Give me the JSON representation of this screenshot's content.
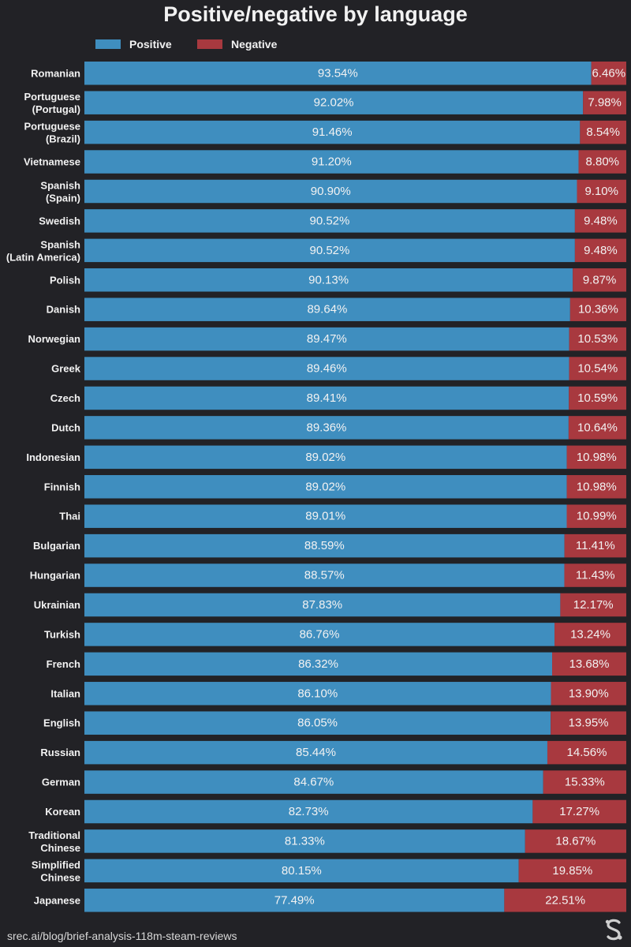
{
  "chart_data": {
    "type": "bar",
    "orientation": "horizontal",
    "stacked": true,
    "title": "Positive/negative by language",
    "categories": [
      [
        "Romanian"
      ],
      [
        "Portuguese",
        "(Portugal)"
      ],
      [
        "Portuguese",
        "(Brazil)"
      ],
      [
        "Vietnamese"
      ],
      [
        "Spanish",
        "(Spain)"
      ],
      [
        "Swedish"
      ],
      [
        "Spanish",
        "(Latin America)"
      ],
      [
        "Polish"
      ],
      [
        "Danish"
      ],
      [
        "Norwegian"
      ],
      [
        "Greek"
      ],
      [
        "Czech"
      ],
      [
        "Dutch"
      ],
      [
        "Indonesian"
      ],
      [
        "Finnish"
      ],
      [
        "Thai"
      ],
      [
        "Bulgarian"
      ],
      [
        "Hungarian"
      ],
      [
        "Ukrainian"
      ],
      [
        "Turkish"
      ],
      [
        "French"
      ],
      [
        "Italian"
      ],
      [
        "English"
      ],
      [
        "Russian"
      ],
      [
        "German"
      ],
      [
        "Korean"
      ],
      [
        "Traditional",
        "Chinese"
      ],
      [
        "Simplified",
        "Chinese"
      ],
      [
        "Japanese"
      ]
    ],
    "series": [
      {
        "name": "Positive",
        "color": "#3f8ebf",
        "values": [
          93.54,
          92.02,
          91.46,
          91.2,
          90.9,
          90.52,
          90.52,
          90.13,
          89.64,
          89.47,
          89.46,
          89.41,
          89.36,
          89.02,
          89.02,
          89.01,
          88.59,
          88.57,
          87.83,
          86.76,
          86.32,
          86.1,
          86.05,
          85.44,
          84.67,
          82.73,
          81.33,
          80.15,
          77.49
        ],
        "labels": [
          "93.54%",
          "92.02%",
          "91.46%",
          "91.20%",
          "90.90%",
          "90.52%",
          "90.52%",
          "90.13%",
          "89.64%",
          "89.47%",
          "89.46%",
          "89.41%",
          "89.36%",
          "89.02%",
          "89.02%",
          "89.01%",
          "88.59%",
          "88.57%",
          "87.83%",
          "86.76%",
          "86.32%",
          "86.10%",
          "86.05%",
          "85.44%",
          "84.67%",
          "82.73%",
          "81.33%",
          "80.15%",
          "77.49%"
        ]
      },
      {
        "name": "Negative",
        "color": "#a8393f",
        "values": [
          6.46,
          7.98,
          8.54,
          8.8,
          9.1,
          9.48,
          9.48,
          9.87,
          10.36,
          10.53,
          10.54,
          10.59,
          10.64,
          10.98,
          10.98,
          10.99,
          11.41,
          11.43,
          12.17,
          13.24,
          13.68,
          13.9,
          13.95,
          14.56,
          15.33,
          17.27,
          18.67,
          19.85,
          22.51
        ],
        "labels": [
          "6.46%",
          "7.98%",
          "8.54%",
          "8.80%",
          "9.10%",
          "9.48%",
          "9.48%",
          "9.87%",
          "10.36%",
          "10.53%",
          "10.54%",
          "10.59%",
          "10.64%",
          "10.98%",
          "10.98%",
          "10.99%",
          "11.41%",
          "11.43%",
          "12.17%",
          "13.24%",
          "13.68%",
          "13.90%",
          "13.95%",
          "14.56%",
          "15.33%",
          "17.27%",
          "18.67%",
          "19.85%",
          "22.51%"
        ]
      }
    ],
    "xlim": [
      0,
      100
    ],
    "legend_position": "top-left",
    "grid": false
  },
  "footer": {
    "source": "srec.ai/blog/brief-analysis-118m-steam-reviews"
  },
  "logo": {
    "icon": "srec-logo-icon"
  }
}
